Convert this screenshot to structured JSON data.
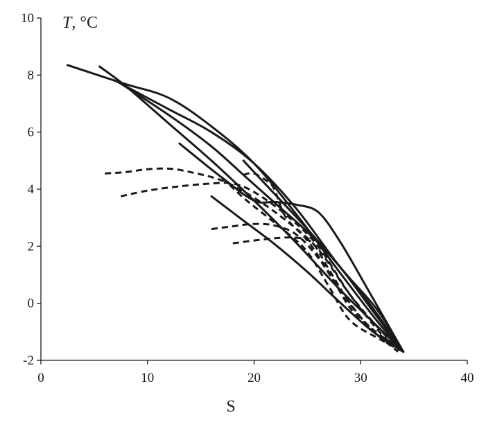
{
  "chart_data": {
    "type": "line",
    "xlabel": "S",
    "ylabel_italic": "T",
    "ylabel_unit": ", °C",
    "xlim": [
      0,
      40
    ],
    "ylim": [
      -2,
      10
    ],
    "xticks": [
      0,
      10,
      20,
      30,
      40
    ],
    "yticks": [
      -2,
      0,
      2,
      4,
      6,
      8,
      10
    ],
    "grid": false,
    "legend": "none",
    "series": [
      {
        "style": "solid",
        "points": [
          [
            2.5,
            8.35
          ],
          [
            7.8,
            7.7
          ],
          [
            12,
            7.2
          ],
          [
            16,
            6.2
          ],
          [
            20,
            4.9
          ],
          [
            24,
            3.1
          ],
          [
            28,
            1.1
          ],
          [
            31.5,
            -0.6
          ],
          [
            34,
            -1.7
          ]
        ]
      },
      {
        "style": "solid",
        "points": [
          [
            5.5,
            8.3
          ],
          [
            8,
            7.6
          ],
          [
            12,
            6.3
          ],
          [
            16,
            5
          ],
          [
            20,
            3.6
          ],
          [
            24,
            2.1
          ],
          [
            28,
            0.5
          ],
          [
            31,
            -0.6
          ],
          [
            34,
            -1.7
          ]
        ]
      },
      {
        "style": "solid",
        "points": [
          [
            7.5,
            7.7
          ],
          [
            12,
            6.6
          ],
          [
            16,
            5.5
          ],
          [
            19,
            4.5
          ],
          [
            22,
            3.5
          ],
          [
            25,
            2.5
          ],
          [
            28,
            1.3
          ],
          [
            31,
            -0.2
          ],
          [
            34,
            -1.7
          ]
        ]
      },
      {
        "style": "solid",
        "points": [
          [
            7,
            7.8
          ],
          [
            12,
            6.8
          ],
          [
            16,
            6
          ],
          [
            20,
            4.9
          ],
          [
            24,
            3.3
          ],
          [
            28,
            1.3
          ],
          [
            31.5,
            -0.2
          ],
          [
            34,
            -1.7
          ]
        ]
      },
      {
        "style": "solid",
        "points": [
          [
            13,
            5.6
          ],
          [
            17,
            4.4
          ],
          [
            20,
            3.6
          ],
          [
            22,
            3.55
          ],
          [
            24,
            3.45
          ],
          [
            26,
            3.2
          ],
          [
            28,
            2.2
          ],
          [
            30.5,
            0.6
          ],
          [
            34,
            -1.7
          ]
        ]
      },
      {
        "style": "solid",
        "points": [
          [
            19,
            5
          ],
          [
            22,
            3.8
          ],
          [
            25,
            2.6
          ],
          [
            28,
            1.3
          ],
          [
            31,
            -0.1
          ],
          [
            34,
            -1.7
          ]
        ]
      },
      {
        "style": "solid",
        "points": [
          [
            16,
            3.75
          ],
          [
            19,
            2.9
          ],
          [
            22,
            2.05
          ],
          [
            25,
            1.1
          ],
          [
            28,
            0.05
          ],
          [
            31,
            -0.95
          ],
          [
            34,
            -1.7
          ]
        ]
      },
      {
        "style": "dashed",
        "points": [
          [
            6,
            4.55
          ],
          [
            8,
            4.6
          ],
          [
            10,
            4.7
          ],
          [
            12,
            4.72
          ],
          [
            14,
            4.6
          ],
          [
            17,
            4.3
          ],
          [
            20,
            3.7
          ],
          [
            23,
            2.9
          ],
          [
            26,
            1.9
          ],
          [
            29,
            0.3
          ],
          [
            32,
            -1
          ],
          [
            34,
            -1.7
          ]
        ]
      },
      {
        "style": "dashed",
        "points": [
          [
            7.5,
            3.75
          ],
          [
            10,
            3.95
          ],
          [
            13,
            4.1
          ],
          [
            16,
            4.2
          ],
          [
            18,
            4.2
          ],
          [
            20,
            3.9
          ],
          [
            23,
            3.1
          ],
          [
            26,
            2
          ],
          [
            29,
            0.3
          ],
          [
            32,
            -1.1
          ],
          [
            34,
            -1.7
          ]
        ]
      },
      {
        "style": "dashed",
        "points": [
          [
            16,
            2.6
          ],
          [
            18,
            2.7
          ],
          [
            20,
            2.78
          ],
          [
            22,
            2.72
          ],
          [
            24,
            2.4
          ],
          [
            26,
            1.6
          ],
          [
            28,
            0.5
          ],
          [
            30.5,
            -0.7
          ],
          [
            34,
            -1.7
          ]
        ]
      },
      {
        "style": "dashed",
        "points": [
          [
            18,
            2.1
          ],
          [
            20,
            2.2
          ],
          [
            22,
            2.28
          ],
          [
            24,
            2.3
          ],
          [
            25.5,
            2.1
          ],
          [
            27,
            1.2
          ],
          [
            29,
            0
          ],
          [
            31.5,
            -1.1
          ],
          [
            34,
            -1.7
          ]
        ]
      },
      {
        "style": "dashed",
        "points": [
          [
            19,
            4.5
          ],
          [
            20,
            4.55
          ],
          [
            21.5,
            4.2
          ],
          [
            22,
            3.9
          ],
          [
            23,
            3
          ],
          [
            25,
            2.2
          ],
          [
            27,
            1.1
          ],
          [
            29.5,
            -0.4
          ],
          [
            33.5,
            -1.7
          ]
        ]
      },
      {
        "style": "dashed",
        "points": [
          [
            17,
            4.4
          ],
          [
            19,
            3.7
          ],
          [
            21,
            3.1
          ],
          [
            23,
            2.5
          ],
          [
            25,
            1.8
          ],
          [
            27,
            0.6
          ],
          [
            29,
            -0.6
          ],
          [
            32,
            -1.3
          ],
          [
            34,
            -1.7
          ]
        ]
      }
    ]
  }
}
